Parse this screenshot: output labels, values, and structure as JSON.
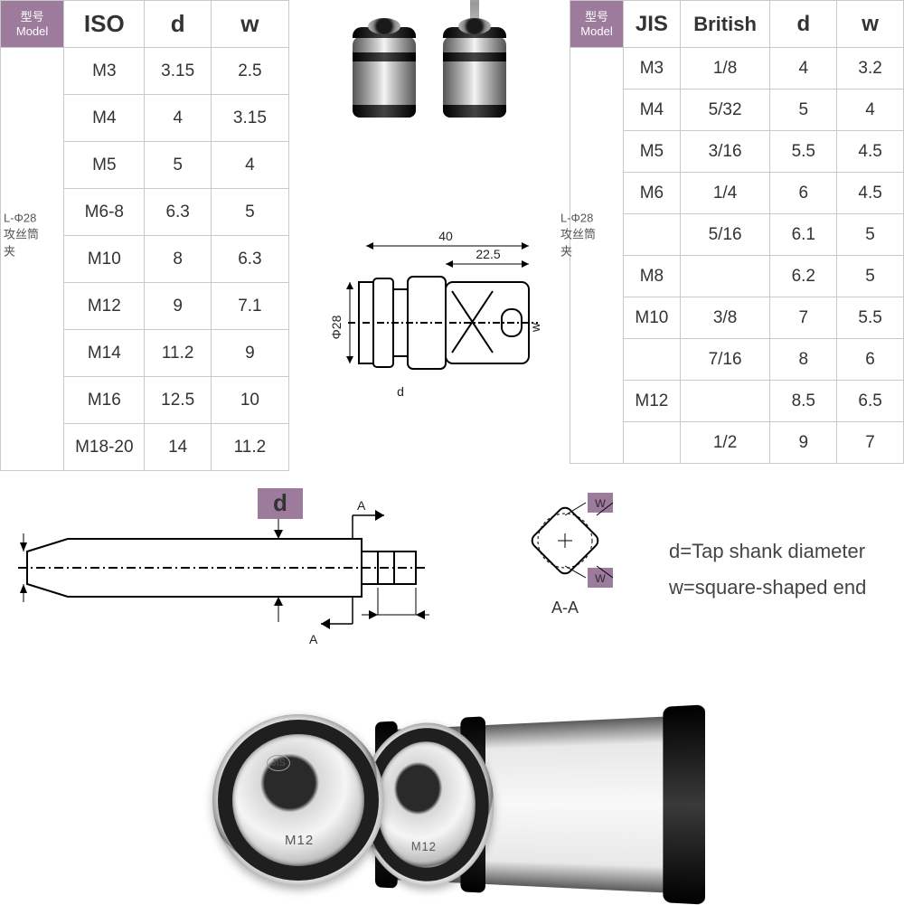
{
  "iso_table": {
    "headers": {
      "model_ch": "型号",
      "model_en": "Model",
      "iso": "ISO",
      "d": "d",
      "w": "w"
    },
    "side_label": "L-Φ28\n攻丝筒夹",
    "rows": [
      {
        "iso": "M3",
        "d": "3.15",
        "w": "2.5"
      },
      {
        "iso": "M4",
        "d": "4",
        "w": "3.15"
      },
      {
        "iso": "M5",
        "d": "5",
        "w": "4"
      },
      {
        "iso": "M6-8",
        "d": "6.3",
        "w": "5"
      },
      {
        "iso": "M10",
        "d": "8",
        "w": "6.3"
      },
      {
        "iso": "M12",
        "d": "9",
        "w": "7.1"
      },
      {
        "iso": "M14",
        "d": "11.2",
        "w": "9"
      },
      {
        "iso": "M16",
        "d": "12.5",
        "w": "10"
      },
      {
        "iso": "M18-20",
        "d": "14",
        "w": "11.2"
      }
    ]
  },
  "jis_table": {
    "headers": {
      "model_ch": "型号",
      "model_en": "Model",
      "jis": "JIS",
      "british": "British",
      "d": "d",
      "w": "w"
    },
    "side_label": "L-Φ28\n攻丝筒夹",
    "rows": [
      {
        "jis": "M3",
        "british": "1/8",
        "d": "4",
        "w": "3.2"
      },
      {
        "jis": "M4",
        "british": "5/32",
        "d": "5",
        "w": "4"
      },
      {
        "jis": "M5",
        "british": "3/16",
        "d": "5.5",
        "w": "4.5"
      },
      {
        "jis": "M6",
        "british": "1/4",
        "d": "6",
        "w": "4.5"
      },
      {
        "jis": "",
        "british": "5/16",
        "d": "6.1",
        "w": "5"
      },
      {
        "jis": "M8",
        "british": "",
        "d": "6.2",
        "w": "5"
      },
      {
        "jis": "M10",
        "british": "3/8",
        "d": "7",
        "w": "5.5"
      },
      {
        "jis": "",
        "british": "7/16",
        "d": "8",
        "w": "6"
      },
      {
        "jis": "M12",
        "british": "",
        "d": "8.5",
        "w": "6.5"
      },
      {
        "jis": "",
        "british": "1/2",
        "d": "9",
        "w": "7"
      }
    ]
  },
  "tech_drawing": {
    "dim_total": "40",
    "dim_front": "22.5",
    "dim_diameter": "Φ28",
    "dim_d": "d",
    "dim_w": "w"
  },
  "tap_diagram": {
    "d_label": "d",
    "section": "A",
    "section_view": "A-A",
    "w_label": "w"
  },
  "legend": {
    "line1": "d=Tap shank diameter",
    "line2": "w=square-shaped end"
  },
  "bottom": {
    "brand": "JIS",
    "size": "M12"
  },
  "colors": {
    "header_purple": "#9d7b9d",
    "border_grey": "#c9c9c9",
    "text": "#333333",
    "bg": "#ffffff"
  }
}
